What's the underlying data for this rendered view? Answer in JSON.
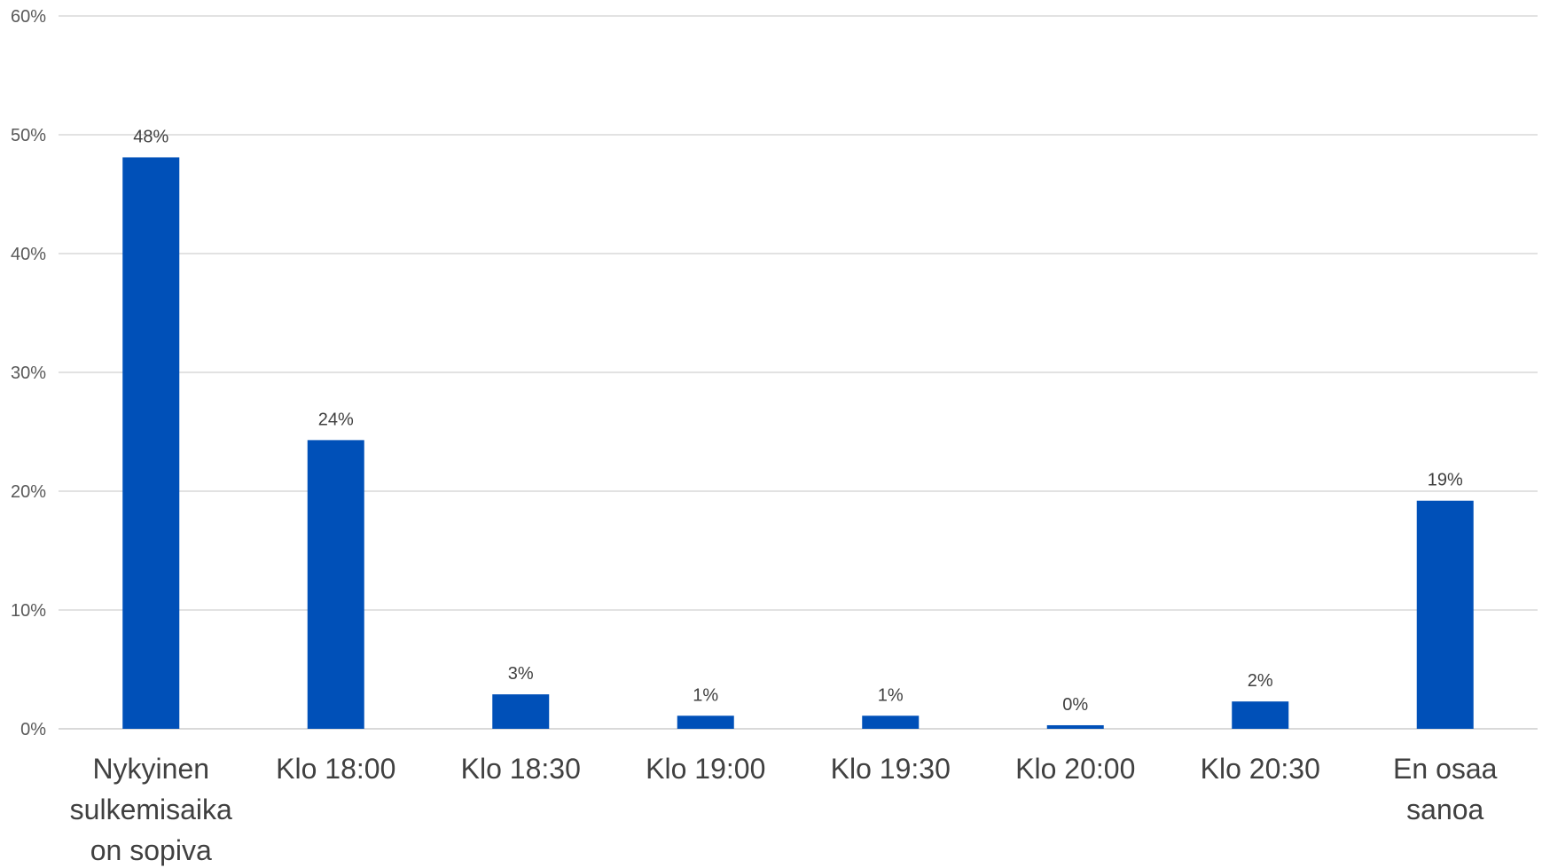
{
  "chart_data": {
    "type": "bar",
    "categories": [
      [
        "Nykyinen",
        "sulkemisaika",
        "on sopiva"
      ],
      [
        "Klo 18:00"
      ],
      [
        "Klo 18:30"
      ],
      [
        "Klo 19:00"
      ],
      [
        "Klo 19:30"
      ],
      [
        "Klo 20:00"
      ],
      [
        "Klo 20:30"
      ],
      [
        "En osaa",
        "sanoa"
      ]
    ],
    "values": [
      48.1,
      24.3,
      2.9,
      1.1,
      1.1,
      0.3,
      2.3,
      19.2
    ],
    "data_labels": [
      "48%",
      "24%",
      "3%",
      "1%",
      "1%",
      "0%",
      "2%",
      "19%"
    ],
    "yticks": [
      0,
      10,
      20,
      30,
      40,
      50,
      60
    ],
    "ytick_labels": [
      "0%",
      "10%",
      "20%",
      "30%",
      "40%",
      "50%",
      "60%"
    ],
    "ylim": [
      0,
      60
    ],
    "grid": true,
    "legend": "none",
    "bar_color": "#0050B8",
    "title": "",
    "xlabel": "",
    "ylabel": ""
  }
}
